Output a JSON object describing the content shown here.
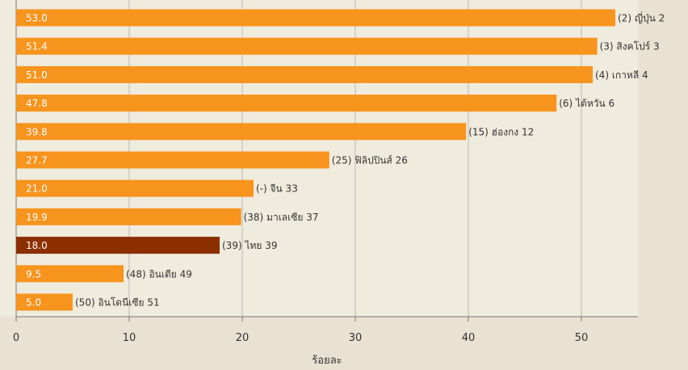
{
  "chart_data": {
    "type": "bar",
    "orientation": "horizontal",
    "xlabel": "ร้อยละ",
    "ylabel": "",
    "title": "",
    "xlim": [
      0,
      55
    ],
    "x_ticks": [
      0,
      10,
      20,
      30,
      40,
      50
    ],
    "grid": true,
    "categories": [
      "(2) ญี่ปุ่น 2",
      "(3) สิงคโปร์ 3",
      "(4) เกาหลี 4",
      "(6) ไต้หวัน 6",
      "(15) ฮ่องกง 12",
      "(25) ฟิลิปปินส์ 26",
      "(-) จีน 33",
      "(38) มาเลเซีย 37",
      "(39) ไทย 39",
      "(48) อินเดีย 49",
      "(50) อินโดนีเซีย 51"
    ],
    "values": [
      53.0,
      51.4,
      51.0,
      47.8,
      39.8,
      27.7,
      21.0,
      19.9,
      18.0,
      9.5,
      5.0
    ],
    "value_labels": [
      "53.0",
      "51.4",
      "51.0",
      "47.8",
      "39.8",
      "27.7",
      "21.0",
      "19.9",
      "18.0",
      "9.5",
      "5.0"
    ],
    "highlight_index": 8,
    "colors": {
      "bar": "#f7941d",
      "highlight": "#8b2e00",
      "grid": "#b8b8b8",
      "axis": "#555555"
    }
  }
}
